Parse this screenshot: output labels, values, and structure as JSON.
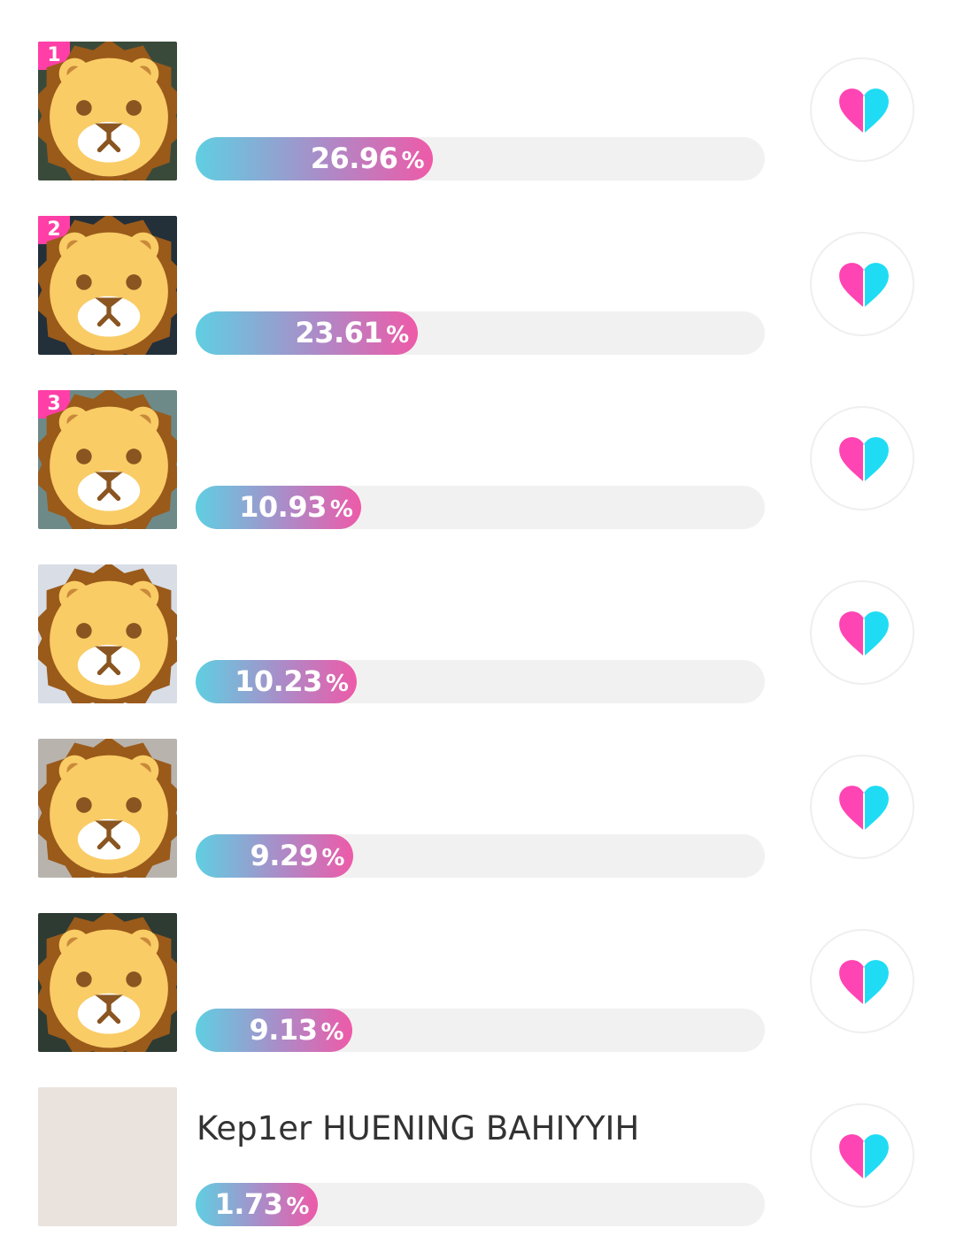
{
  "colors": {
    "badge": "#ff3fa7",
    "bar_start": "#5fcfe2",
    "bar_end": "#ee5aa8",
    "track": "#f1f1f1",
    "heart_left": "#ff44b4",
    "heart_right": "#1fdcf4"
  },
  "items": [
    {
      "rank": "1",
      "name": "",
      "percent": "26.96",
      "fraction": 0.4168,
      "photo": "#3a4a3a",
      "masked": true
    },
    {
      "rank": "2",
      "name": "",
      "percent": "23.61",
      "fraction": 0.3899,
      "photo": "#23303a",
      "masked": true
    },
    {
      "rank": "3",
      "name": "",
      "percent": "10.93",
      "fraction": 0.2915,
      "photo": "#6d8a88",
      "masked": true
    },
    {
      "rank": "",
      "name": "",
      "percent": "10.23",
      "fraction": 0.2837,
      "photo": "#d8dde6",
      "masked": true
    },
    {
      "rank": "",
      "name": "",
      "percent": "9.29",
      "fraction": 0.2768,
      "photo": "#b8b3ad",
      "masked": true
    },
    {
      "rank": "",
      "name": "",
      "percent": "9.13",
      "fraction": 0.2753,
      "photo": "#2d3b33",
      "masked": true
    },
    {
      "rank": "",
      "name": "Kep1er HUENING BAHIYYIH",
      "percent": "1.73",
      "fraction": 0.2146,
      "photo": "#e9e2dd",
      "masked": false
    }
  ],
  "percent_symbol": "%",
  "icons": {
    "vote": "heart-icon",
    "avatar_mask": "lion-face-icon"
  }
}
